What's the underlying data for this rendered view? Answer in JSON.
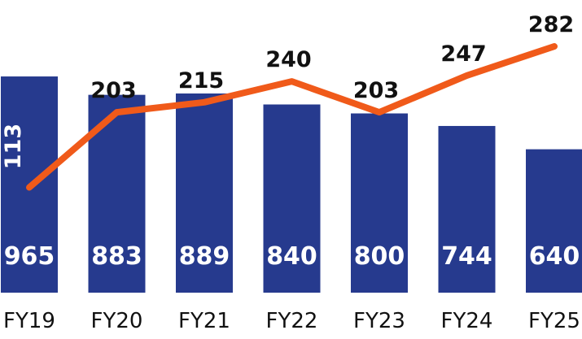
{
  "chart_data": {
    "type": "bar",
    "categories": [
      "FY19",
      "FY20",
      "FY21",
      "FY22",
      "FY23",
      "FY24",
      "FY25"
    ],
    "series": [
      {
        "type": "bar",
        "values": [
          965,
          883,
          889,
          840,
          800,
          744,
          640
        ]
      },
      {
        "type": "line",
        "values": [
          113,
          203,
          215,
          240,
          203,
          247,
          282
        ]
      }
    ],
    "title": "",
    "xlabel": "",
    "ylabel": "",
    "grid": false,
    "legend": "none",
    "colors": {
      "bar": "#263a8e",
      "line": "#f05a1a"
    }
  }
}
